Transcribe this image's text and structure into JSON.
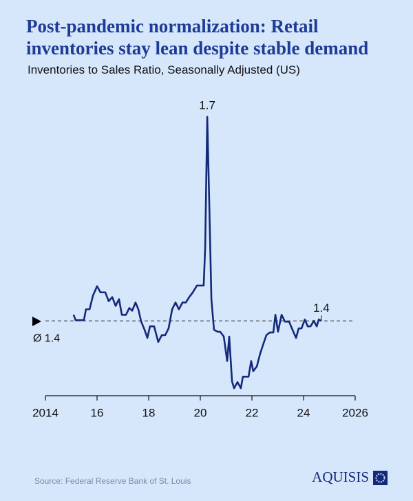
{
  "chart_data": {
    "type": "line",
    "title": "Post-pandemic normalization: Retail inventories stay lean despite stable demand",
    "subtitle": "Inventories to Sales Ratio, Seasonally Adjusted (US)",
    "source": "Source: Federal Reserve Bank of St. Louis",
    "brand": "AQUISIS",
    "average": 1.4,
    "average_label": "Ø 1.4",
    "color": "#14297a",
    "x": [
      2015.09,
      2015.17,
      2015.33,
      2015.49,
      2015.57,
      2015.71,
      2015.84,
      2016.0,
      2016.13,
      2016.32,
      2016.45,
      2016.59,
      2016.72,
      2016.85,
      2016.96,
      2017.12,
      2017.25,
      2017.36,
      2017.49,
      2017.6,
      2017.71,
      2017.84,
      2017.95,
      2018.05,
      2018.21,
      2018.37,
      2018.51,
      2018.64,
      2018.77,
      2018.91,
      2019.04,
      2019.17,
      2019.31,
      2019.44,
      2019.57,
      2019.71,
      2019.87,
      2020.0,
      2020.13,
      2020.19,
      2020.27,
      2020.35,
      2020.43,
      2020.53,
      2020.67,
      2020.77,
      2020.91,
      2021.04,
      2021.12,
      2021.23,
      2021.31,
      2021.44,
      2021.57,
      2021.65,
      2021.79,
      2021.87,
      2021.97,
      2022.05,
      2022.19,
      2022.32,
      2022.45,
      2022.56,
      2022.69,
      2022.83,
      2022.91,
      2023.01,
      2023.15,
      2023.28,
      2023.44,
      2023.57,
      2023.71,
      2023.81,
      2023.92,
      2024.05,
      2024.16,
      2024.27,
      2024.4,
      2024.51,
      2024.59,
      2024.69
    ],
    "values": [
      1.409,
      1.401,
      1.401,
      1.401,
      1.417,
      1.417,
      1.437,
      1.451,
      1.442,
      1.442,
      1.429,
      1.435,
      1.422,
      1.432,
      1.409,
      1.409,
      1.419,
      1.415,
      1.427,
      1.417,
      1.399,
      1.387,
      1.375,
      1.392,
      1.392,
      1.369,
      1.379,
      1.379,
      1.389,
      1.417,
      1.427,
      1.417,
      1.427,
      1.427,
      1.435,
      1.442,
      1.452,
      1.452,
      1.452,
      1.508,
      1.7,
      1.569,
      1.432,
      1.387,
      1.384,
      1.384,
      1.377,
      1.341,
      1.377,
      1.311,
      1.301,
      1.31,
      1.301,
      1.318,
      1.318,
      1.318,
      1.341,
      1.326,
      1.333,
      1.352,
      1.367,
      1.379,
      1.383,
      1.383,
      1.409,
      1.384,
      1.409,
      1.399,
      1.399,
      1.387,
      1.375,
      1.389,
      1.389,
      1.402,
      1.392,
      1.392,
      1.4,
      1.392,
      1.402,
      1.4
    ],
    "xlim": [
      2014,
      2026
    ],
    "xticks": [
      2014,
      {
        "value": 2016,
        "label": "16"
      },
      {
        "value": 2018,
        "label": "18"
      },
      {
        "value": 2020,
        "label": "20"
      },
      {
        "value": 2022,
        "label": "22"
      },
      {
        "value": 2024,
        "label": "24"
      },
      2026
    ],
    "ylim": [
      1.29,
      1.72
    ]
  }
}
